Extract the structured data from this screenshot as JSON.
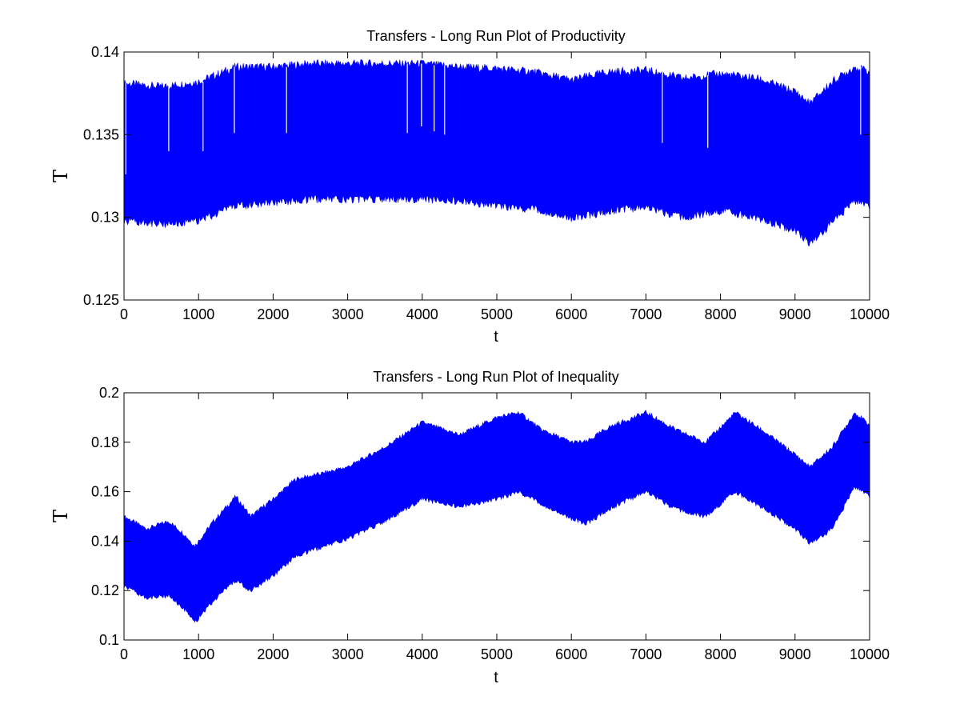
{
  "chart_data": [
    {
      "type": "area",
      "title": "Transfers - Long Run Plot of Productivity",
      "xlabel": "t",
      "ylabel": "T",
      "xlim": [
        0,
        10000
      ],
      "ylim": [
        0.125,
        0.14
      ],
      "x_ticks": [
        "0",
        "1000",
        "2000",
        "3000",
        "4000",
        "5000",
        "6000",
        "7000",
        "8000",
        "9000",
        "10000"
      ],
      "y_ticks": [
        "0.125",
        "0.13",
        "0.135",
        "0.14"
      ],
      "grid": false,
      "color": "#0000ff",
      "series": [
        {
          "x": [
            0,
            500,
            1000,
            1500,
            2000,
            2500,
            3000,
            3500,
            4000,
            4500,
            5000,
            5500,
            6000,
            6500,
            7000,
            7500,
            8000,
            8500,
            9000,
            9200,
            9500,
            9800,
            10000
          ],
          "upper": [
            0.1381,
            0.1379,
            0.1382,
            0.1391,
            0.1391,
            0.1393,
            0.1393,
            0.1393,
            0.1393,
            0.1391,
            0.139,
            0.1388,
            0.1383,
            0.1388,
            0.1389,
            0.1384,
            0.1387,
            0.1384,
            0.1376,
            0.1369,
            0.1382,
            0.1391,
            0.1388
          ],
          "lower": [
            0.1298,
            0.1296,
            0.1298,
            0.1307,
            0.1309,
            0.1311,
            0.1311,
            0.1311,
            0.1311,
            0.131,
            0.1307,
            0.1305,
            0.1299,
            0.1304,
            0.1306,
            0.13,
            0.1304,
            0.13,
            0.1292,
            0.1284,
            0.1297,
            0.131,
            0.1306
          ]
        }
      ],
      "gaps": [
        {
          "x": 25,
          "from": 0.1326,
          "to": 0.1381
        },
        {
          "x": 600,
          "from": 0.134,
          "to": 0.1379
        },
        {
          "x": 1060,
          "from": 0.134,
          "to": 0.1382
        },
        {
          "x": 1480,
          "from": 0.1351,
          "to": 0.1391
        },
        {
          "x": 2180,
          "from": 0.1351,
          "to": 0.1391
        },
        {
          "x": 3800,
          "from": 0.1351,
          "to": 0.1393
        },
        {
          "x": 3990,
          "from": 0.1355,
          "to": 0.1393
        },
        {
          "x": 4160,
          "from": 0.1352,
          "to": 0.1392
        },
        {
          "x": 4300,
          "from": 0.135,
          "to": 0.1392
        },
        {
          "x": 7220,
          "from": 0.1345,
          "to": 0.1387
        },
        {
          "x": 7830,
          "from": 0.1342,
          "to": 0.1386
        },
        {
          "x": 9880,
          "from": 0.135,
          "to": 0.1391
        }
      ]
    },
    {
      "type": "area",
      "title": "Transfers - Long Run Plot of Inequality",
      "xlabel": "t",
      "ylabel": "T",
      "xlim": [
        0,
        10000
      ],
      "ylim": [
        0.1,
        0.2
      ],
      "x_ticks": [
        "0",
        "1000",
        "2000",
        "3000",
        "4000",
        "5000",
        "6000",
        "7000",
        "8000",
        "9000",
        "10000"
      ],
      "y_ticks": [
        "0.1",
        "0.12",
        "0.14",
        "0.16",
        "0.18",
        "0.2"
      ],
      "grid": false,
      "color": "#0000ff",
      "series": [
        {
          "x": [
            0,
            300,
            600,
            800,
            950,
            1200,
            1500,
            1700,
            2000,
            2300,
            2600,
            3000,
            3500,
            4000,
            4500,
            5000,
            5300,
            5600,
            6000,
            6200,
            6500,
            7000,
            7400,
            7800,
            8200,
            8600,
            9000,
            9200,
            9500,
            9800,
            10000
          ],
          "upper": [
            0.15,
            0.145,
            0.148,
            0.143,
            0.138,
            0.148,
            0.158,
            0.15,
            0.157,
            0.165,
            0.167,
            0.17,
            0.178,
            0.188,
            0.183,
            0.19,
            0.192,
            0.185,
            0.18,
            0.18,
            0.186,
            0.192,
            0.185,
            0.18,
            0.192,
            0.184,
            0.175,
            0.17,
            0.178,
            0.192,
            0.187
          ],
          "lower": [
            0.122,
            0.117,
            0.118,
            0.113,
            0.107,
            0.116,
            0.124,
            0.12,
            0.126,
            0.134,
            0.137,
            0.141,
            0.148,
            0.157,
            0.154,
            0.157,
            0.16,
            0.155,
            0.149,
            0.147,
            0.153,
            0.16,
            0.153,
            0.15,
            0.16,
            0.153,
            0.145,
            0.139,
            0.145,
            0.162,
            0.158
          ]
        }
      ]
    }
  ]
}
